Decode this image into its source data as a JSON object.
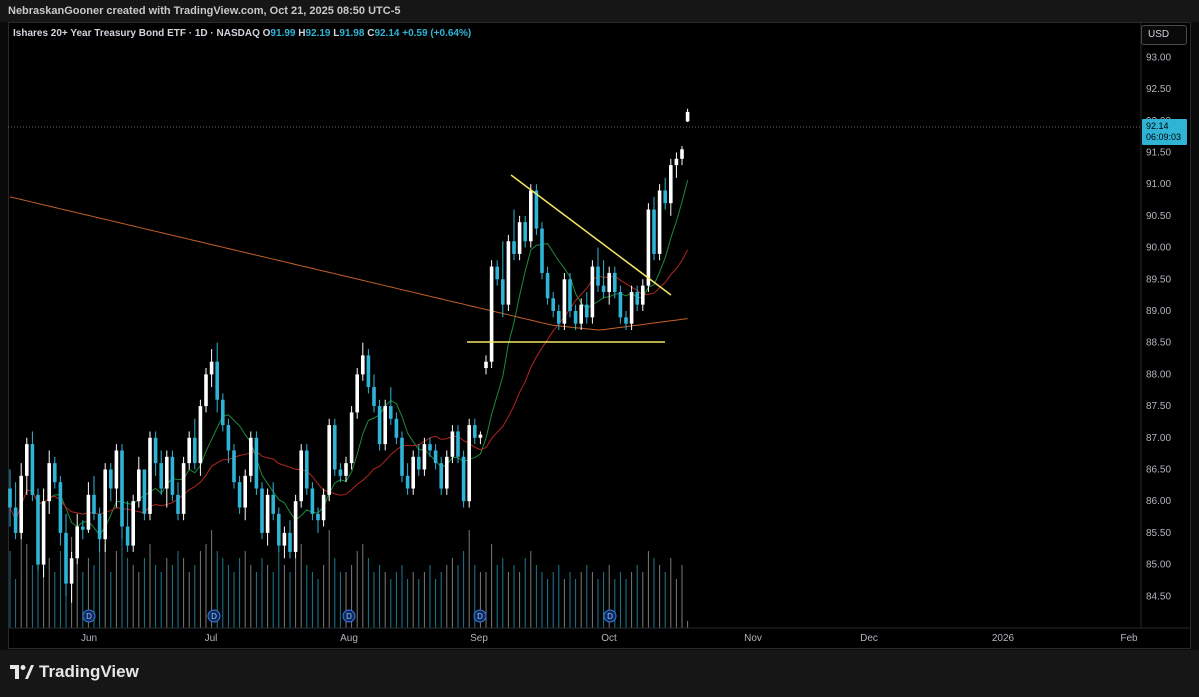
{
  "header": {
    "attribution": "NebraskanGooner created with TradingView.com, Oct 21, 2025 08:50 UTC-5"
  },
  "legend": {
    "symbol": "Ishares 20+ Year Treasury Bond ETF · 1D · NASDAQ",
    "o_label": "O",
    "o": "91.99",
    "h_label": "H",
    "h": "92.19",
    "l_label": "L",
    "l": "91.98",
    "c_label": "C",
    "c": "92.14",
    "change": "+0.59 (+0.64%)"
  },
  "currency": "USD",
  "last_price": {
    "price": "92.14",
    "countdown": "06:09:03"
  },
  "footer": {
    "brand": "TradingView"
  },
  "colors": {
    "up": "#ffffff",
    "down": "#2fb4d6",
    "ma_fast": "#1f8a3c",
    "ma_mid": "#b3261e",
    "ma_slow": "#c4612a",
    "trendline": "#f5e663"
  },
  "icons": {
    "dividend_marker": "D",
    "brand_logo": "tradingview-logo-icon"
  },
  "chart_data": {
    "type": "candlestick",
    "title": "",
    "ylim": [
      84.0,
      93.4
    ],
    "y_ticks": [
      "93.00",
      "92.50",
      "92.00",
      "91.50",
      "91.00",
      "90.50",
      "90.00",
      "89.50",
      "89.00",
      "88.50",
      "88.00",
      "87.50",
      "87.00",
      "86.50",
      "86.00",
      "85.50",
      "85.00",
      "84.50"
    ],
    "x_ticks": [
      "Jun",
      "Jul",
      "Aug",
      "Sep",
      "Oct",
      "Nov",
      "Dec",
      "2026",
      "Feb"
    ],
    "dividend_marker_label": "D",
    "dividend_marker_count": 5,
    "candles": [
      [
        86.2,
        86.5,
        85.6,
        85.9
      ],
      [
        85.9,
        86.3,
        85.4,
        85.5
      ],
      [
        85.5,
        86.6,
        85.4,
        86.4
      ],
      [
        86.4,
        87.0,
        86.1,
        86.9
      ],
      [
        86.9,
        87.1,
        86.0,
        86.1
      ],
      [
        86.1,
        86.2,
        84.9,
        85.0
      ],
      [
        85.0,
        86.2,
        84.8,
        86.0
      ],
      [
        86.0,
        86.8,
        85.8,
        86.6
      ],
      [
        86.6,
        86.7,
        86.2,
        86.3
      ],
      [
        86.3,
        86.4,
        85.3,
        85.5
      ],
      [
        85.5,
        85.8,
        84.5,
        84.7
      ],
      [
        84.7,
        85.2,
        84.4,
        85.1
      ],
      [
        85.1,
        85.8,
        85.0,
        85.6
      ],
      [
        85.6,
        85.7,
        85.4,
        85.55
      ],
      [
        85.55,
        86.3,
        85.5,
        86.1
      ],
      [
        86.1,
        86.4,
        85.7,
        85.8
      ],
      [
        85.8,
        85.9,
        85.2,
        85.4
      ],
      [
        85.4,
        86.6,
        85.2,
        86.5
      ],
      [
        86.5,
        86.6,
        86.0,
        86.2
      ],
      [
        86.2,
        86.9,
        85.9,
        86.8
      ],
      [
        86.8,
        86.9,
        85.4,
        85.6
      ],
      [
        85.6,
        86.0,
        85.2,
        85.3
      ],
      [
        85.3,
        86.1,
        85.2,
        86.0
      ],
      [
        86.0,
        86.7,
        85.9,
        86.5
      ],
      [
        86.5,
        86.5,
        85.7,
        85.8
      ],
      [
        85.8,
        87.1,
        85.7,
        87.0
      ],
      [
        87.0,
        87.1,
        86.4,
        86.6
      ],
      [
        86.6,
        86.8,
        86.1,
        86.2
      ],
      [
        86.2,
        86.8,
        85.9,
        86.7
      ],
      [
        86.7,
        86.8,
        86.0,
        86.1
      ],
      [
        86.1,
        86.3,
        85.7,
        85.8
      ],
      [
        85.8,
        86.7,
        85.7,
        86.6
      ],
      [
        86.6,
        87.1,
        86.5,
        87.0
      ],
      [
        87.0,
        87.3,
        86.5,
        86.6
      ],
      [
        86.6,
        87.6,
        86.4,
        87.5
      ],
      [
        87.5,
        88.1,
        87.4,
        88.0
      ],
      [
        88.0,
        88.4,
        87.8,
        88.2
      ],
      [
        88.2,
        88.5,
        87.4,
        87.6
      ],
      [
        87.6,
        87.7,
        87.1,
        87.2
      ],
      [
        87.2,
        87.3,
        86.6,
        86.8
      ],
      [
        86.8,
        86.9,
        86.2,
        86.3
      ],
      [
        86.3,
        86.4,
        85.8,
        85.9
      ],
      [
        85.9,
        86.5,
        85.7,
        86.4
      ],
      [
        86.4,
        87.1,
        86.3,
        87.0
      ],
      [
        87.0,
        87.1,
        86.1,
        86.2
      ],
      [
        86.2,
        86.3,
        85.4,
        85.5
      ],
      [
        85.5,
        86.2,
        85.3,
        86.1
      ],
      [
        86.1,
        86.3,
        85.7,
        85.8
      ],
      [
        85.8,
        85.9,
        85.2,
        85.3
      ],
      [
        85.3,
        85.6,
        85.1,
        85.5
      ],
      [
        85.5,
        85.7,
        85.1,
        85.2
      ],
      [
        85.2,
        86.1,
        85.1,
        86.0
      ],
      [
        86.0,
        86.9,
        85.9,
        86.8
      ],
      [
        86.8,
        86.9,
        86.1,
        86.2
      ],
      [
        86.2,
        86.3,
        85.7,
        85.8
      ],
      [
        85.8,
        85.9,
        85.5,
        85.7
      ],
      [
        85.7,
        86.2,
        85.6,
        86.1
      ],
      [
        86.1,
        87.3,
        86.0,
        87.2
      ],
      [
        87.2,
        87.3,
        86.4,
        86.5
      ],
      [
        86.5,
        86.6,
        86.3,
        86.4
      ],
      [
        86.4,
        86.7,
        86.3,
        86.6
      ],
      [
        86.6,
        87.5,
        86.5,
        87.4
      ],
      [
        87.4,
        88.1,
        87.3,
        88.0
      ],
      [
        88.0,
        88.5,
        87.9,
        88.3
      ],
      [
        88.3,
        88.4,
        87.7,
        87.8
      ],
      [
        87.8,
        88.0,
        87.4,
        87.5
      ],
      [
        87.5,
        87.6,
        86.8,
        86.9
      ],
      [
        86.9,
        87.6,
        86.8,
        87.5
      ],
      [
        87.5,
        87.8,
        87.2,
        87.3
      ],
      [
        87.3,
        87.4,
        86.9,
        87.0
      ],
      [
        87.0,
        87.1,
        86.3,
        86.4
      ],
      [
        86.4,
        86.6,
        86.1,
        86.2
      ],
      [
        86.2,
        86.8,
        86.1,
        86.7
      ],
      [
        86.7,
        86.9,
        86.4,
        86.5
      ],
      [
        86.5,
        87.0,
        86.4,
        86.9
      ],
      [
        86.9,
        87.0,
        86.7,
        86.8
      ],
      [
        86.8,
        86.9,
        86.5,
        86.6
      ],
      [
        86.6,
        86.7,
        86.1,
        86.2
      ],
      [
        86.2,
        86.8,
        86.1,
        86.7
      ],
      [
        86.7,
        87.2,
        86.6,
        87.1
      ],
      [
        87.1,
        87.2,
        86.6,
        86.7
      ],
      [
        86.7,
        86.8,
        85.9,
        86.0
      ],
      [
        86.0,
        87.3,
        85.9,
        87.2
      ],
      [
        87.2,
        87.3,
        86.9,
        87.0
      ],
      [
        87.0,
        87.1,
        86.9,
        87.05
      ],
      [
        88.1,
        88.3,
        88.0,
        88.2
      ],
      [
        88.2,
        89.8,
        88.1,
        89.7
      ],
      [
        89.7,
        89.8,
        89.4,
        89.5
      ],
      [
        89.5,
        90.1,
        88.9,
        89.1
      ],
      [
        89.1,
        90.2,
        89.0,
        90.1
      ],
      [
        90.1,
        90.6,
        89.8,
        89.9
      ],
      [
        89.9,
        90.5,
        89.8,
        90.4
      ],
      [
        90.4,
        90.5,
        90.0,
        90.1
      ],
      [
        90.1,
        91.0,
        90.0,
        90.9
      ],
      [
        90.9,
        91.0,
        90.2,
        90.3
      ],
      [
        90.3,
        90.4,
        89.5,
        89.6
      ],
      [
        89.6,
        89.7,
        89.1,
        89.2
      ],
      [
        89.2,
        89.3,
        88.9,
        89.0
      ],
      [
        89.0,
        89.1,
        88.7,
        88.8
      ],
      [
        88.8,
        89.6,
        88.7,
        89.5
      ],
      [
        89.5,
        89.6,
        88.9,
        89.0
      ],
      [
        89.0,
        89.1,
        88.7,
        88.8
      ],
      [
        88.8,
        89.2,
        88.7,
        89.1
      ],
      [
        89.1,
        89.3,
        88.8,
        88.9
      ],
      [
        88.9,
        89.8,
        88.8,
        89.7
      ],
      [
        89.7,
        90.0,
        89.3,
        89.4
      ],
      [
        89.4,
        89.8,
        89.2,
        89.3
      ],
      [
        89.3,
        89.7,
        89.1,
        89.6
      ],
      [
        89.6,
        89.7,
        89.2,
        89.3
      ],
      [
        89.3,
        89.4,
        88.8,
        88.9
      ],
      [
        88.9,
        89.0,
        88.7,
        88.8
      ],
      [
        88.8,
        89.4,
        88.7,
        89.3
      ],
      [
        89.3,
        89.4,
        89.0,
        89.1
      ],
      [
        89.1,
        89.5,
        89.0,
        89.4
      ],
      [
        89.4,
        90.7,
        89.3,
        90.6
      ],
      [
        90.6,
        90.8,
        89.8,
        89.9
      ],
      [
        89.9,
        91.0,
        89.8,
        90.9
      ],
      [
        90.9,
        91.1,
        90.6,
        90.7
      ],
      [
        90.7,
        91.4,
        90.5,
        91.3
      ],
      [
        91.3,
        91.5,
        91.1,
        91.4
      ],
      [
        91.4,
        91.6,
        91.3,
        91.55
      ],
      [
        91.99,
        92.19,
        91.98,
        92.14
      ]
    ],
    "volume_relative": [
      0.55,
      0.35,
      0.7,
      0.6,
      0.45,
      0.8,
      0.6,
      0.5,
      0.4,
      0.55,
      0.7,
      0.65,
      0.45,
      0.4,
      0.5,
      0.45,
      0.55,
      0.6,
      0.4,
      0.55,
      0.65,
      0.5,
      0.45,
      0.4,
      0.5,
      0.6,
      0.45,
      0.4,
      0.5,
      0.45,
      0.55,
      0.5,
      0.4,
      0.45,
      0.55,
      0.6,
      0.7,
      0.55,
      0.5,
      0.45,
      0.4,
      0.5,
      0.55,
      0.45,
      0.4,
      0.5,
      0.45,
      0.4,
      0.55,
      0.45,
      0.4,
      0.5,
      0.6,
      0.45,
      0.4,
      0.35,
      0.45,
      0.7,
      0.5,
      0.4,
      0.4,
      0.45,
      0.55,
      0.6,
      0.5,
      0.4,
      0.45,
      0.4,
      0.35,
      0.4,
      0.45,
      0.35,
      0.4,
      0.35,
      0.4,
      0.45,
      0.35,
      0.4,
      0.45,
      0.5,
      0.45,
      0.55,
      0.7,
      0.45,
      0.4,
      0.4,
      0.6,
      0.45,
      0.5,
      0.4,
      0.45,
      0.4,
      0.5,
      0.55,
      0.45,
      0.4,
      0.35,
      0.4,
      0.45,
      0.35,
      0.4,
      0.35,
      0.4,
      0.45,
      0.4,
      0.35,
      0.4,
      0.45,
      0.35,
      0.4,
      0.35,
      0.4,
      0.45,
      0.4,
      0.55,
      0.5,
      0.45,
      0.4,
      0.5,
      0.35,
      0.45,
      0.05
    ]
  }
}
